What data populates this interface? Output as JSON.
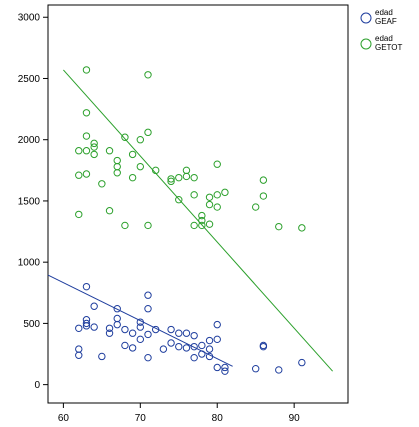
{
  "chart_data": {
    "type": "scatter",
    "title": "",
    "xlabel": "",
    "ylabel": "",
    "xlim": [
      58,
      97
    ],
    "ylim": [
      -150,
      3100
    ],
    "x_ticks": [
      60,
      70,
      80,
      90
    ],
    "y_ticks": [
      0,
      500,
      1000,
      1500,
      2000,
      2500,
      3000
    ],
    "grid": false,
    "legend_position": "right",
    "series": [
      {
        "name": "edad GEAF",
        "color": "#1f3e9e",
        "points": [
          [
            62,
            290
          ],
          [
            62,
            240
          ],
          [
            62,
            460
          ],
          [
            63,
            800
          ],
          [
            63,
            530
          ],
          [
            63,
            480
          ],
          [
            63,
            500
          ],
          [
            64,
            640
          ],
          [
            64,
            470
          ],
          [
            65,
            230
          ],
          [
            66,
            420
          ],
          [
            66,
            460
          ],
          [
            67,
            620
          ],
          [
            67,
            490
          ],
          [
            67,
            540
          ],
          [
            68,
            320
          ],
          [
            68,
            450
          ],
          [
            69,
            300
          ],
          [
            69,
            420
          ],
          [
            70,
            470
          ],
          [
            70,
            510
          ],
          [
            70,
            370
          ],
          [
            71,
            730
          ],
          [
            71,
            620
          ],
          [
            71,
            410
          ],
          [
            71,
            220
          ],
          [
            72,
            450
          ],
          [
            73,
            290
          ],
          [
            74,
            450
          ],
          [
            74,
            340
          ],
          [
            75,
            420
          ],
          [
            75,
            310
          ],
          [
            76,
            420
          ],
          [
            76,
            300
          ],
          [
            77,
            400
          ],
          [
            77,
            310
          ],
          [
            77,
            220
          ],
          [
            78,
            320
          ],
          [
            78,
            250
          ],
          [
            79,
            360
          ],
          [
            79,
            290
          ],
          [
            79,
            230
          ],
          [
            80,
            490
          ],
          [
            80,
            370
          ],
          [
            80,
            140
          ],
          [
            81,
            140
          ],
          [
            81,
            110
          ],
          [
            85,
            130
          ],
          [
            86,
            320
          ],
          [
            86,
            310
          ],
          [
            88,
            120
          ],
          [
            91,
            180
          ]
        ],
        "fit_line": {
          "x": [
            58,
            82
          ],
          "y": [
            895,
            150
          ]
        }
      },
      {
        "name": "edad GETOT",
        "color": "#2ca02c",
        "points": [
          [
            62,
            1910
          ],
          [
            62,
            1710
          ],
          [
            62,
            1390
          ],
          [
            63,
            2570
          ],
          [
            63,
            2220
          ],
          [
            63,
            2030
          ],
          [
            63,
            1910
          ],
          [
            63,
            1720
          ],
          [
            64,
            1940
          ],
          [
            64,
            1880
          ],
          [
            64,
            1970
          ],
          [
            65,
            1640
          ],
          [
            66,
            1910
          ],
          [
            66,
            1420
          ],
          [
            67,
            1830
          ],
          [
            67,
            1780
          ],
          [
            67,
            1730
          ],
          [
            68,
            2020
          ],
          [
            68,
            1300
          ],
          [
            69,
            1880
          ],
          [
            69,
            1690
          ],
          [
            70,
            2000
          ],
          [
            70,
            1780
          ],
          [
            71,
            2530
          ],
          [
            71,
            2060
          ],
          [
            71,
            1300
          ],
          [
            72,
            1750
          ],
          [
            74,
            1660
          ],
          [
            74,
            1680
          ],
          [
            75,
            1690
          ],
          [
            75,
            1510
          ],
          [
            76,
            1750
          ],
          [
            76,
            1700
          ],
          [
            77,
            1550
          ],
          [
            77,
            1690
          ],
          [
            77,
            1300
          ],
          [
            78,
            1380
          ],
          [
            78,
            1300
          ],
          [
            78,
            1340
          ],
          [
            79,
            1530
          ],
          [
            79,
            1470
          ],
          [
            79,
            1310
          ],
          [
            80,
            1800
          ],
          [
            80,
            1550
          ],
          [
            80,
            1450
          ],
          [
            81,
            1570
          ],
          [
            85,
            1450
          ],
          [
            86,
            1670
          ],
          [
            86,
            1540
          ],
          [
            88,
            1290
          ],
          [
            91,
            1280
          ]
        ],
        "fit_line": {
          "x": [
            60,
            95
          ],
          "y": [
            2570,
            110
          ]
        }
      }
    ]
  }
}
